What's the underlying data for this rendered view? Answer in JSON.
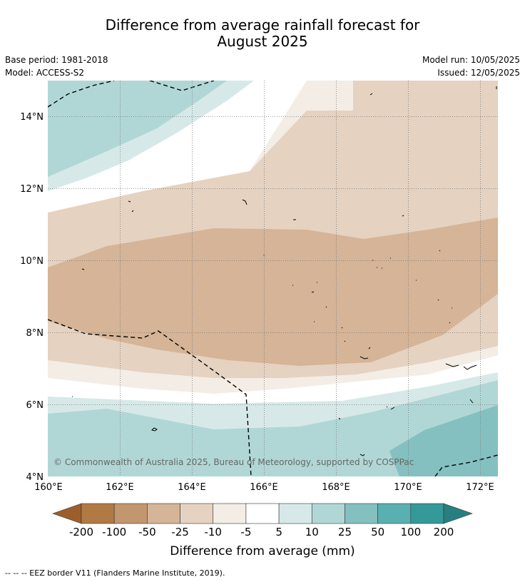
{
  "title": {
    "line1": "Difference from average rainfall forecast for",
    "line2": "August 2025"
  },
  "info": {
    "base_period": "Base period: 1981-2018",
    "model": "Model: ACCESS-S2",
    "model_run": "Model run: 10/05/2025",
    "issued": "Issued: 12/05/2025"
  },
  "map": {
    "lon_ticks": [
      "160°E",
      "162°E",
      "164°E",
      "166°E",
      "168°E",
      "170°E",
      "172°E"
    ],
    "lat_ticks": [
      "14°N",
      "12°N",
      "10°N",
      "8°N",
      "6°N",
      "4°N"
    ],
    "copyright": "© Commonwealth of Australia 2025, Bureau of Meteorology, supported by COSPPac"
  },
  "colorbar": {
    "labels": [
      "-200",
      "-100",
      "-50",
      "-25",
      "-10",
      "-5",
      "5",
      "10",
      "25",
      "50",
      "100",
      "200"
    ],
    "colors": [
      "#9c5f2c",
      "#b17a45",
      "#c29770",
      "#d5b497",
      "#e5d2c1",
      "#f3ede6",
      "#ffffff",
      "#d6e9e8",
      "#b0d7d6",
      "#84c0bf",
      "#5ab0b0",
      "#35999a",
      "#27807f"
    ],
    "label": "Difference from average (mm)"
  },
  "footer": "--  --  -- EEZ border V11 (Flanders Marine Institute, 2019)."
}
